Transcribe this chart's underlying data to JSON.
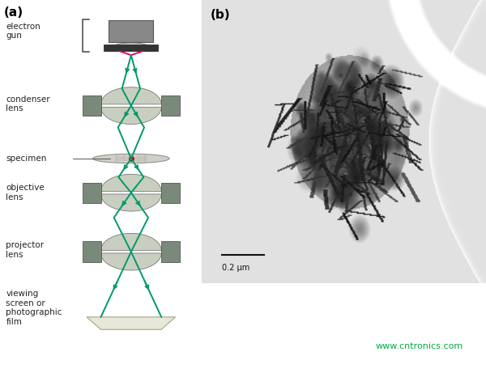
{
  "fig_width": 6.0,
  "fig_height": 4.61,
  "dpi": 100,
  "background": "#ffffff",
  "label_a": "(a)",
  "label_b": "(b)",
  "label_color": "#000000",
  "label_fontsize": 11,
  "label_fontweight": "bold",
  "text_labels": {
    "electron_gun": "electron\ngun",
    "condenser_lens": "condenser\nlens",
    "specimen": "specimen",
    "objective_lens": "objective\nlens",
    "projector_lens": "projector\nlens",
    "viewing_screen": "viewing\nscreen or\nphotographic\nfilm"
  },
  "text_fontsize": 7.5,
  "scale_bar_text": "0.2 μm",
  "watermark": "www.cntronics.com",
  "watermark_color": "#00aa44",
  "watermark_fontsize": 8,
  "lens_light": "#c8cfc0",
  "lens_dark": "#7a8a7a",
  "beam_color": "#00996a",
  "pink_color": "#e8006a",
  "red_dot_color": "#cc0000",
  "gun_gray": "#888888",
  "gun_dark": "#333333"
}
